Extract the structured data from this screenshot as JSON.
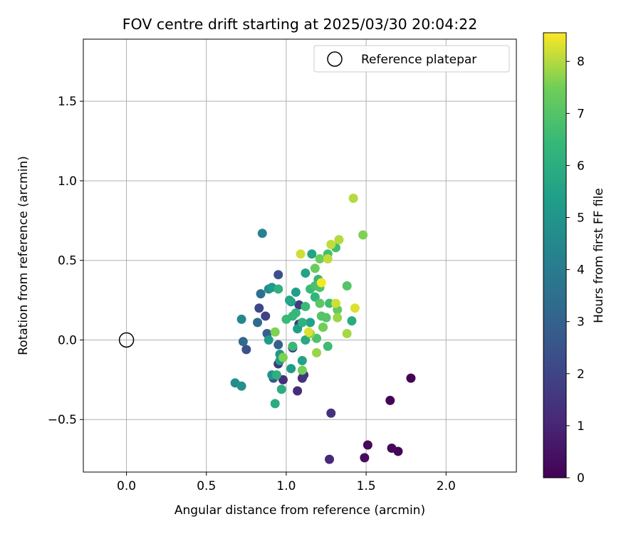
{
  "chart_data": {
    "type": "scatter",
    "title": "FOV centre drift starting at 2025/03/30 20:04:22",
    "xlabel": "Angular distance from reference (arcmin)",
    "ylabel": "Rotation from reference (arcmin)",
    "xlim": [
      -0.27,
      2.44
    ],
    "ylim": [
      -0.83,
      1.89
    ],
    "xticks": [
      0.0,
      0.5,
      1.0,
      1.5,
      2.0
    ],
    "xtick_labels": [
      "0.0",
      "0.5",
      "1.0",
      "1.5",
      "2.0"
    ],
    "yticks": [
      -0.5,
      0.0,
      0.5,
      1.0,
      1.5
    ],
    "ytick_labels": [
      "−0.5",
      "0.0",
      "0.5",
      "1.0",
      "1.5"
    ],
    "grid": true,
    "legend": {
      "position": "top-right",
      "entries": [
        {
          "label": "Reference platepar",
          "marker": "open-circle"
        }
      ]
    },
    "reference_point": {
      "x": 0.0,
      "y": 0.0
    },
    "colorbar": {
      "label": "Hours from first FF file",
      "colormap": "viridis",
      "range": [
        0,
        8.55
      ],
      "ticks": [
        0,
        1,
        2,
        3,
        4,
        5,
        6,
        7,
        8
      ],
      "tick_labels": [
        "0",
        "1",
        "2",
        "3",
        "4",
        "5",
        "6",
        "7",
        "8"
      ]
    },
    "points": [
      {
        "x": 1.78,
        "y": -0.24,
        "h": 0.05
      },
      {
        "x": 1.65,
        "y": -0.38,
        "h": 0.1
      },
      {
        "x": 1.7,
        "y": -0.7,
        "h": 0.15
      },
      {
        "x": 1.66,
        "y": -0.68,
        "h": 0.2
      },
      {
        "x": 1.51,
        "y": -0.66,
        "h": 0.25
      },
      {
        "x": 1.49,
        "y": -0.74,
        "h": 0.3
      },
      {
        "x": 1.27,
        "y": -0.75,
        "h": 1.1
      },
      {
        "x": 1.28,
        "y": -0.46,
        "h": 1.4
      },
      {
        "x": 1.07,
        "y": -0.32,
        "h": 1.2
      },
      {
        "x": 0.98,
        "y": -0.25,
        "h": 1.3
      },
      {
        "x": 1.1,
        "y": -0.24,
        "h": 1.35
      },
      {
        "x": 1.11,
        "y": -0.22,
        "h": 1.5
      },
      {
        "x": 0.95,
        "y": -0.15,
        "h": 1.6
      },
      {
        "x": 1.08,
        "y": 0.1,
        "h": 1.6
      },
      {
        "x": 1.08,
        "y": 0.22,
        "h": 1.7
      },
      {
        "x": 1.04,
        "y": -0.05,
        "h": 1.8
      },
      {
        "x": 0.87,
        "y": 0.15,
        "h": 1.9
      },
      {
        "x": 0.83,
        "y": 0.2,
        "h": 2.1
      },
      {
        "x": 0.95,
        "y": 0.41,
        "h": 2.4
      },
      {
        "x": 0.75,
        "y": -0.06,
        "h": 2.4
      },
      {
        "x": 0.92,
        "y": -0.24,
        "h": 2.6
      },
      {
        "x": 0.88,
        "y": 0.04,
        "h": 2.9
      },
      {
        "x": 0.95,
        "y": -0.03,
        "h": 3.0
      },
      {
        "x": 0.73,
        "y": -0.01,
        "h": 3.2
      },
      {
        "x": 0.82,
        "y": 0.11,
        "h": 3.3
      },
      {
        "x": 0.84,
        "y": 0.29,
        "h": 3.5
      },
      {
        "x": 0.85,
        "y": 0.67,
        "h": 4.3
      },
      {
        "x": 0.72,
        "y": 0.13,
        "h": 4.5
      },
      {
        "x": 0.89,
        "y": 0.32,
        "h": 4.6
      },
      {
        "x": 0.68,
        "y": -0.27,
        "h": 4.7
      },
      {
        "x": 0.72,
        "y": -0.29,
        "h": 4.8
      },
      {
        "x": 0.91,
        "y": -0.22,
        "h": 5.0
      },
      {
        "x": 0.96,
        "y": -0.09,
        "h": 5.1
      },
      {
        "x": 0.89,
        "y": 0.0,
        "h": 5.2
      },
      {
        "x": 0.96,
        "y": -0.13,
        "h": 5.3
      },
      {
        "x": 0.91,
        "y": 0.33,
        "h": 5.2
      },
      {
        "x": 1.03,
        "y": -0.18,
        "h": 5.3
      },
      {
        "x": 1.07,
        "y": 0.07,
        "h": 5.4
      },
      {
        "x": 1.03,
        "y": 0.24,
        "h": 5.4
      },
      {
        "x": 1.06,
        "y": 0.3,
        "h": 5.4
      },
      {
        "x": 1.1,
        "y": -0.13,
        "h": 5.5
      },
      {
        "x": 1.15,
        "y": 0.11,
        "h": 5.5
      },
      {
        "x": 1.12,
        "y": 0.42,
        "h": 5.5
      },
      {
        "x": 1.16,
        "y": 0.54,
        "h": 5.6
      },
      {
        "x": 1.02,
        "y": 0.25,
        "h": 5.7
      },
      {
        "x": 1.23,
        "y": 0.08,
        "h": 5.8
      },
      {
        "x": 1.12,
        "y": 0.0,
        "h": 5.8
      },
      {
        "x": 1.41,
        "y": 0.12,
        "h": 5.9
      },
      {
        "x": 0.93,
        "y": -0.4,
        "h": 5.9
      },
      {
        "x": 0.97,
        "y": -0.31,
        "h": 6.0
      },
      {
        "x": 0.94,
        "y": -0.22,
        "h": 6.1
      },
      {
        "x": 0.95,
        "y": 0.32,
        "h": 6.1
      },
      {
        "x": 1.1,
        "y": 0.11,
        "h": 6.2
      },
      {
        "x": 1.18,
        "y": 0.27,
        "h": 6.3
      },
      {
        "x": 1.2,
        "y": 0.38,
        "h": 6.4
      },
      {
        "x": 1.26,
        "y": -0.04,
        "h": 6.6
      },
      {
        "x": 1.27,
        "y": 0.23,
        "h": 6.6
      },
      {
        "x": 1.26,
        "y": 0.54,
        "h": 6.7
      },
      {
        "x": 1.31,
        "y": 0.58,
        "h": 6.7
      },
      {
        "x": 1.04,
        "y": -0.04,
        "h": 6.5
      },
      {
        "x": 1.0,
        "y": 0.13,
        "h": 6.5
      },
      {
        "x": 1.04,
        "y": 0.15,
        "h": 6.4
      },
      {
        "x": 1.06,
        "y": 0.17,
        "h": 6.4
      },
      {
        "x": 1.12,
        "y": 0.21,
        "h": 6.5
      },
      {
        "x": 1.15,
        "y": 0.32,
        "h": 6.5
      },
      {
        "x": 1.18,
        "y": 0.34,
        "h": 6.8
      },
      {
        "x": 1.21,
        "y": 0.33,
        "h": 6.9
      },
      {
        "x": 1.22,
        "y": 0.15,
        "h": 7.0
      },
      {
        "x": 1.25,
        "y": 0.14,
        "h": 7.0
      },
      {
        "x": 1.21,
        "y": 0.23,
        "h": 7.1
      },
      {
        "x": 1.19,
        "y": 0.01,
        "h": 6.9
      },
      {
        "x": 1.32,
        "y": 0.19,
        "h": 7.3
      },
      {
        "x": 1.38,
        "y": 0.34,
        "h": 7.0
      },
      {
        "x": 1.18,
        "y": 0.45,
        "h": 7.4
      },
      {
        "x": 1.21,
        "y": 0.51,
        "h": 7.4
      },
      {
        "x": 1.23,
        "y": 0.08,
        "h": 7.5
      },
      {
        "x": 1.1,
        "y": -0.19,
        "h": 7.5
      },
      {
        "x": 0.98,
        "y": -0.11,
        "h": 7.6
      },
      {
        "x": 0.93,
        "y": 0.05,
        "h": 7.6
      },
      {
        "x": 1.15,
        "y": 0.04,
        "h": 7.7
      },
      {
        "x": 1.19,
        "y": -0.08,
        "h": 7.8
      },
      {
        "x": 1.32,
        "y": 0.14,
        "h": 7.8
      },
      {
        "x": 1.38,
        "y": 0.04,
        "h": 7.9
      },
      {
        "x": 1.48,
        "y": 0.66,
        "h": 7.6
      },
      {
        "x": 1.42,
        "y": 0.89,
        "h": 8.0
      },
      {
        "x": 1.33,
        "y": 0.63,
        "h": 8.0
      },
      {
        "x": 1.28,
        "y": 0.6,
        "h": 8.1
      },
      {
        "x": 1.26,
        "y": 0.51,
        "h": 8.1
      },
      {
        "x": 1.09,
        "y": 0.54,
        "h": 8.2
      },
      {
        "x": 1.31,
        "y": 0.23,
        "h": 8.2
      },
      {
        "x": 1.43,
        "y": 0.2,
        "h": 8.3
      },
      {
        "x": 1.14,
        "y": 0.05,
        "h": 8.3
      },
      {
        "x": 1.22,
        "y": 0.36,
        "h": 8.5
      }
    ]
  }
}
